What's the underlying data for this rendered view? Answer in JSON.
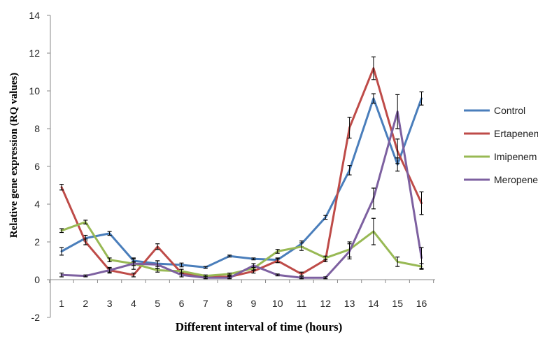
{
  "chart_data": {
    "type": "line",
    "xlabel": "Different interval of time (hours)",
    "ylabel": "Relative gene expression (RQ values)",
    "categories": [
      "1",
      "2",
      "3",
      "4",
      "5",
      "6",
      "7",
      "8",
      "9",
      "10",
      "11",
      "12",
      "13",
      "14",
      "15",
      "16"
    ],
    "ylim": [
      -2,
      14
    ],
    "yticks": [
      -2,
      0,
      2,
      4,
      6,
      8,
      10,
      12,
      14
    ],
    "grid": false,
    "legend_position": "right",
    "series": [
      {
        "name": "Control",
        "color": "#4a7ebb",
        "values": [
          1.5,
          2.2,
          2.45,
          1.0,
          0.85,
          0.78,
          0.65,
          1.25,
          1.1,
          1.05,
          1.9,
          3.3,
          5.8,
          9.6,
          6.1,
          9.6
        ],
        "errors": [
          0.2,
          0.15,
          0.1,
          0.1,
          0.15,
          0.1,
          0.05,
          0.05,
          0.05,
          0.1,
          0.15,
          0.1,
          0.25,
          0.25,
          0.35,
          0.35
        ]
      },
      {
        "name": "Ertapenem",
        "color": "#be4b48",
        "values": [
          4.9,
          2.0,
          0.5,
          0.25,
          1.75,
          0.35,
          0.15,
          0.15,
          0.45,
          1.0,
          0.3,
          1.05,
          8.05,
          11.2,
          6.8,
          4.05
        ],
        "errors": [
          0.15,
          0.15,
          0.15,
          0.1,
          0.15,
          0.1,
          0.05,
          0.05,
          0.1,
          0.1,
          0.1,
          0.1,
          0.55,
          0.6,
          0.65,
          0.6
        ]
      },
      {
        "name": "Imipenem",
        "color": "#98b954",
        "values": [
          2.6,
          3.05,
          1.05,
          0.85,
          0.5,
          0.45,
          0.2,
          0.3,
          0.6,
          1.5,
          1.75,
          1.15,
          1.6,
          2.55,
          0.95,
          0.7
        ],
        "errors": [
          0.1,
          0.1,
          0.1,
          0.1,
          0.1,
          0.1,
          0.05,
          0.05,
          0.1,
          0.1,
          0.2,
          0.1,
          0.4,
          0.7,
          0.25,
          0.15
        ]
      },
      {
        "name": "Meropenem",
        "color": "#7d60a0",
        "values": [
          0.25,
          0.2,
          0.5,
          0.85,
          0.8,
          0.25,
          0.1,
          0.1,
          0.75,
          0.25,
          0.1,
          0.1,
          1.5,
          4.3,
          8.9,
          1.15
        ],
        "errors": [
          0.1,
          0.05,
          0.1,
          0.3,
          0.2,
          0.1,
          0.05,
          0.05,
          0.1,
          0.05,
          0.05,
          0.05,
          0.4,
          0.55,
          0.9,
          0.55
        ]
      }
    ]
  }
}
